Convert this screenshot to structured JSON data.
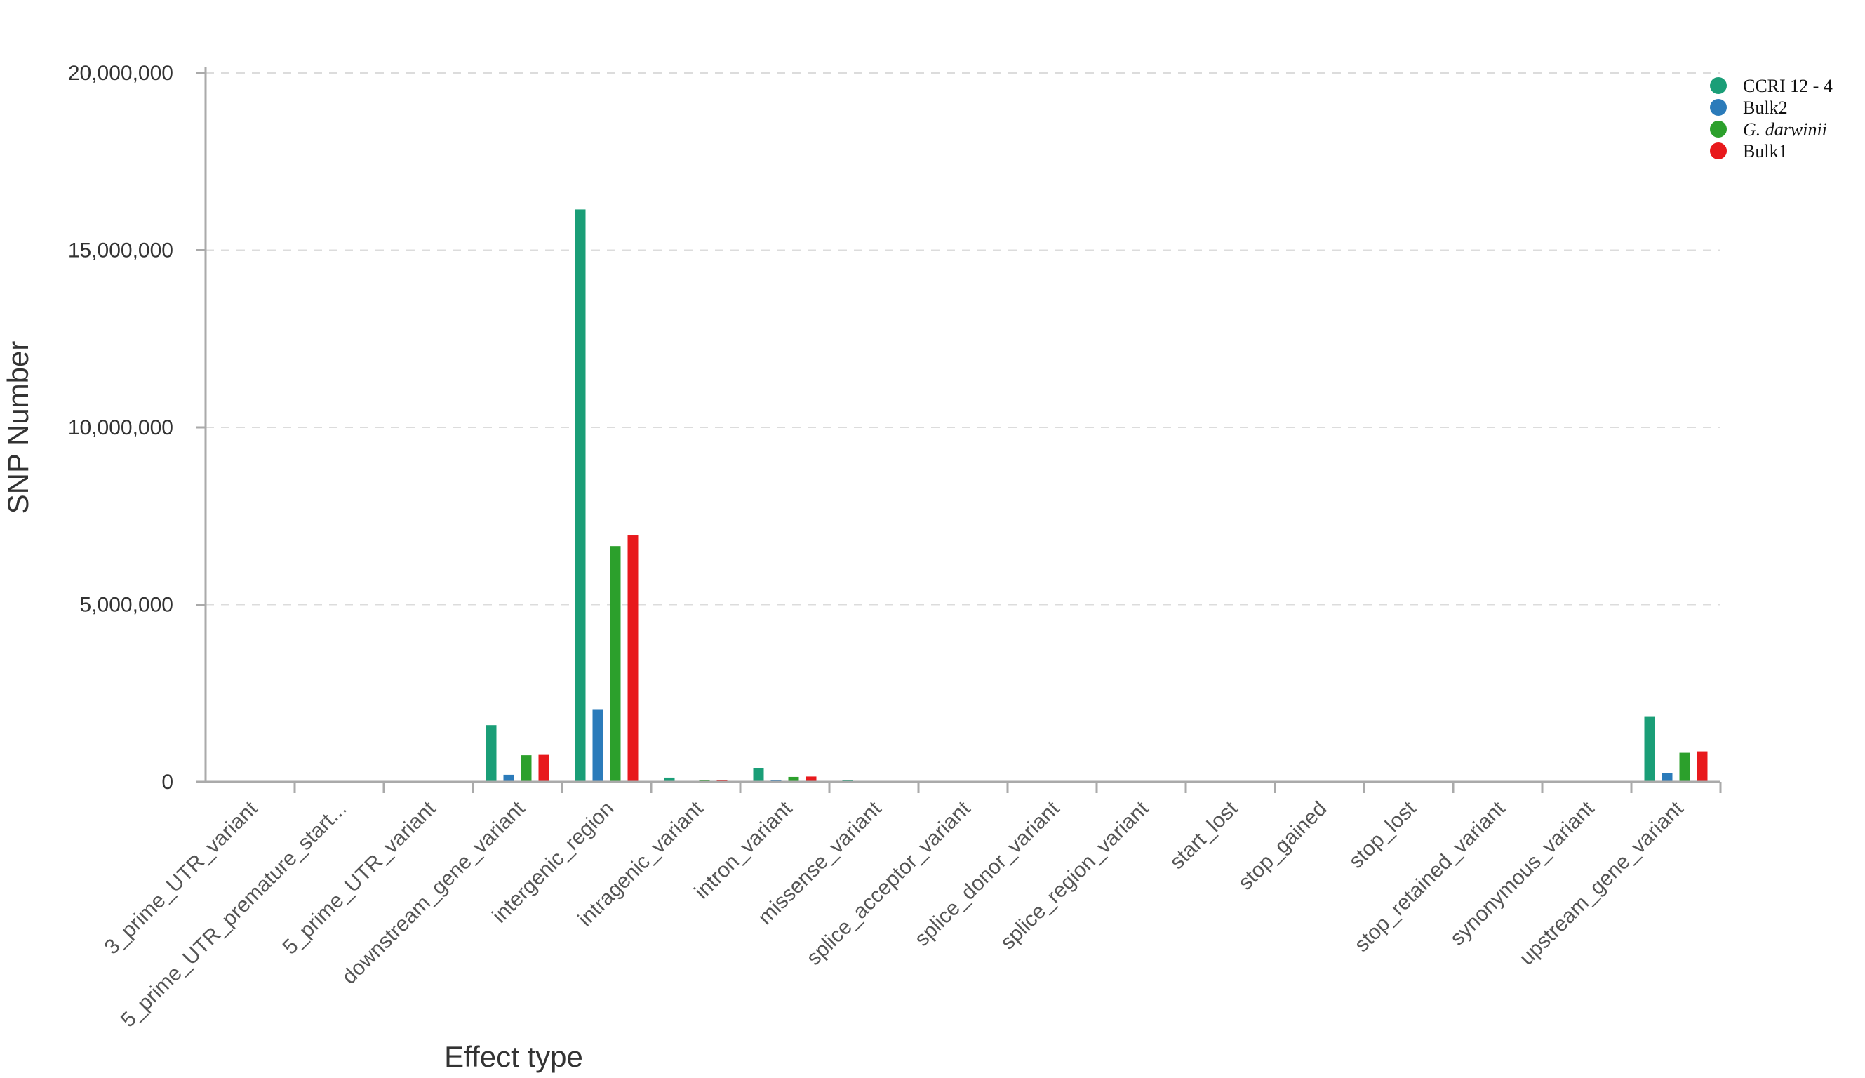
{
  "chart_data": {
    "type": "bar",
    "title": "",
    "xlabel": "Effect type",
    "ylabel": "SNP Number",
    "ylim": [
      0,
      20000000
    ],
    "y_ticks": [
      {
        "value": 0,
        "label": "0"
      },
      {
        "value": 5000000,
        "label": "5,000,000"
      },
      {
        "value": 10000000,
        "label": "10,000,000"
      },
      {
        "value": 15000000,
        "label": "15,000,000"
      },
      {
        "value": 20000000,
        "label": "20,000,000"
      }
    ],
    "grid": "horizontal-dashed",
    "legend_position": "top-right",
    "categories": [
      "3_prime_UTR_variant",
      "5_prime_UTR_premature_start...",
      "5_prime_UTR_variant",
      "downstream_gene_variant",
      "intergenic_region",
      "intragenic_variant",
      "intron_variant",
      "missense_variant",
      "splice_acceptor_variant",
      "splice_donor_variant",
      "splice_region_variant",
      "start_lost",
      "stop_gained",
      "stop_lost",
      "stop_retained_variant",
      "synonymous_variant",
      "upstream_gene_variant"
    ],
    "series": [
      {
        "name": "CCRI 12 - 4",
        "italic": false,
        "color": "#1a9e77",
        "values": [
          8000,
          200,
          8000,
          1600000,
          16150000,
          120000,
          380000,
          50000,
          3000,
          3000,
          6000,
          300,
          1500,
          300,
          200,
          12000,
          1850000
        ]
      },
      {
        "name": "Bulk2",
        "italic": false,
        "color": "#2b7bba",
        "values": [
          1000,
          50,
          1000,
          200000,
          2050000,
          15000,
          45000,
          8000,
          500,
          500,
          800,
          50,
          200,
          50,
          30,
          2000,
          240000
        ]
      },
      {
        "name": "G. darwinii",
        "italic": true,
        "color": "#2ca02c",
        "values": [
          3000,
          100,
          3000,
          750000,
          6650000,
          50000,
          140000,
          20000,
          1500,
          1500,
          2500,
          150,
          700,
          150,
          100,
          6000,
          820000
        ]
      },
      {
        "name": "Bulk1",
        "italic": false,
        "color": "#e8191c",
        "values": [
          3500,
          100,
          3500,
          760000,
          6950000,
          55000,
          150000,
          22000,
          1600,
          1600,
          2700,
          150,
          750,
          150,
          100,
          6500,
          860000
        ]
      }
    ]
  }
}
